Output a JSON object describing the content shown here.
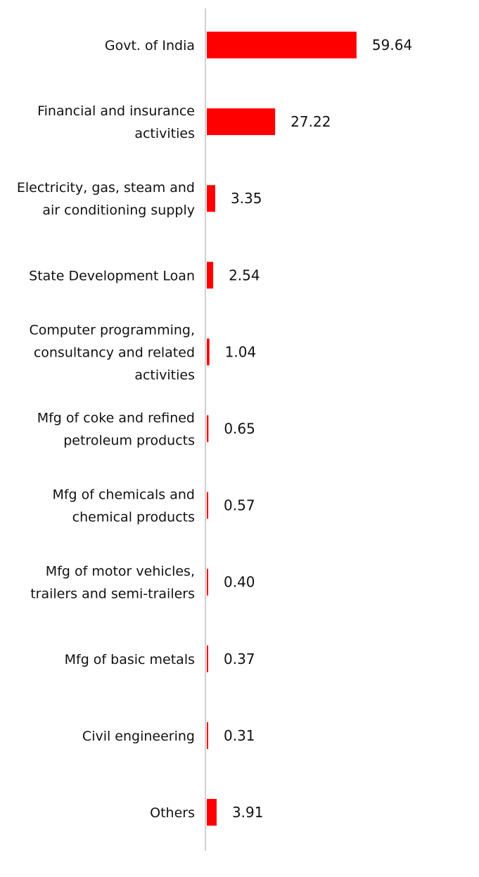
{
  "chart_data": {
    "type": "bar",
    "orientation": "horizontal",
    "categories": [
      [
        "Govt. of India"
      ],
      [
        "Financial and insurance",
        "activities"
      ],
      [
        "Electricity, gas, steam and",
        "air conditioning supply"
      ],
      [
        "State Development Loan"
      ],
      [
        "Computer programming,",
        "consultancy and related",
        "activities"
      ],
      [
        "Mfg of coke and refined",
        "petroleum products"
      ],
      [
        "Mfg of chemicals and",
        "chemical products"
      ],
      [
        "Mfg of motor vehicles,",
        "trailers and semi-trailers"
      ],
      [
        "Mfg of basic metals"
      ],
      [
        "Civil engineering"
      ],
      [
        "Others"
      ]
    ],
    "values": [
      59.64,
      27.22,
      3.35,
      2.54,
      1.04,
      0.65,
      0.57,
      0.4,
      0.37,
      0.31,
      3.91
    ],
    "value_labels": [
      "59.64",
      "27.22",
      "3.35",
      "2.54",
      "1.04",
      "0.65",
      "0.57",
      "0.40",
      "0.37",
      "0.31",
      "3.91"
    ],
    "xlim": [
      0,
      100
    ],
    "grid": false,
    "legend": "none",
    "colors": {
      "bar": "#ff0000",
      "axis": "#d0d0d0",
      "text": "#111111"
    }
  }
}
